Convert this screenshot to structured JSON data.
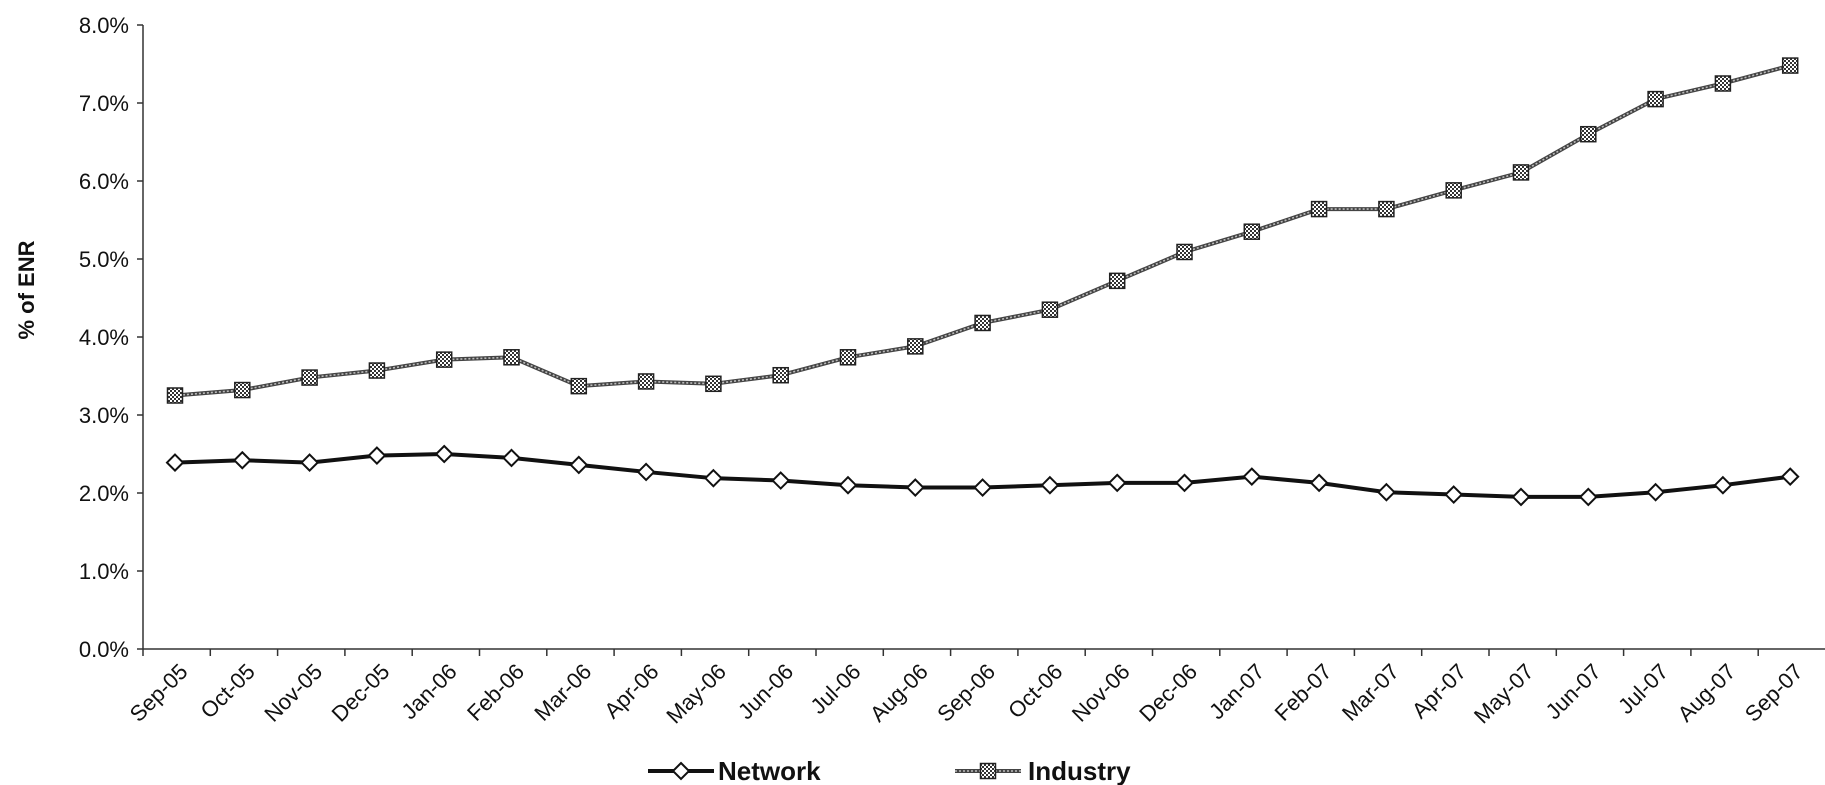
{
  "chart_data": {
    "type": "line",
    "title": "",
    "xlabel": "",
    "ylabel": "% of ENR",
    "ylim": [
      0,
      8.0
    ],
    "yticks": [
      "0.0%",
      "1.0%",
      "2.0%",
      "3.0%",
      "4.0%",
      "5.0%",
      "6.0%",
      "7.0%",
      "8.0%"
    ],
    "categories": [
      "Sep-05",
      "Oct-05",
      "Nov-05",
      "Dec-05",
      "Jan-06",
      "Feb-06",
      "Mar-06",
      "Apr-06",
      "May-06",
      "Jun-06",
      "Jul-06",
      "Aug-06",
      "Sep-06",
      "Oct-06",
      "Nov-06",
      "Dec-06",
      "Jan-07",
      "Feb-07",
      "Mar-07",
      "Apr-07",
      "May-07",
      "Jun-07",
      "Jul-07",
      "Aug-07",
      "Sep-07"
    ],
    "grid": false,
    "legend_position": "bottom",
    "series": [
      {
        "name": "Network",
        "marker": "diamond",
        "color": "#111111",
        "values": [
          2.39,
          2.42,
          2.39,
          2.48,
          2.5,
          2.45,
          2.36,
          2.27,
          2.19,
          2.16,
          2.1,
          2.07,
          2.07,
          2.1,
          2.13,
          2.13,
          2.21,
          2.13,
          2.01,
          1.98,
          1.95,
          1.95,
          2.01,
          2.1,
          2.21
        ]
      },
      {
        "name": "Industry",
        "marker": "square",
        "color": "#555555",
        "values": [
          3.25,
          3.32,
          3.48,
          3.57,
          3.71,
          3.74,
          3.37,
          3.43,
          3.4,
          3.51,
          3.74,
          3.88,
          4.18,
          4.35,
          4.72,
          5.09,
          5.35,
          5.64,
          5.64,
          5.88,
          6.11,
          6.6,
          7.05,
          7.25,
          7.48
        ]
      }
    ]
  }
}
